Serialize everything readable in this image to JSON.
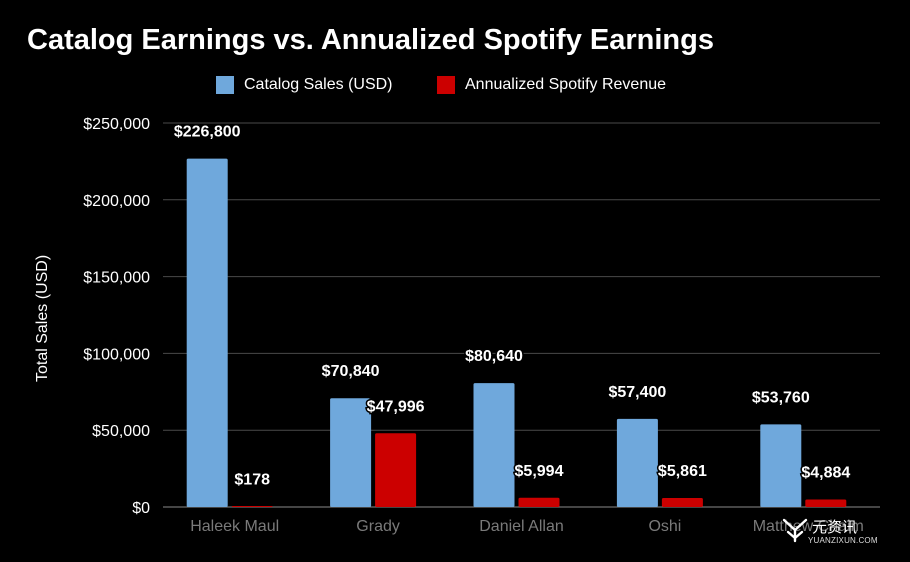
{
  "chart_data": {
    "type": "bar",
    "title": "Catalog Earnings vs. Annualized Spotify Earnings",
    "ylabel": "Total Sales (USD)",
    "xlabel": "",
    "ylim": [
      0,
      250000
    ],
    "yticks": [
      0,
      50000,
      100000,
      150000,
      200000,
      250000
    ],
    "ytick_labels": [
      "$0",
      "$50,000",
      "$100,000",
      "$150,000",
      "$200,000",
      "$250,000"
    ],
    "grid": true,
    "legend_position": "top-center",
    "categories": [
      "Haleek Maul",
      "Grady",
      "Daniel Allan",
      "Oshi",
      "Matthew Chaim"
    ],
    "series": [
      {
        "name": "Catalog Sales (USD)",
        "color": "#6fa8dc",
        "values": [
          226800,
          70840,
          80640,
          57400,
          53760
        ],
        "labels": [
          "$226,800",
          "$70,840",
          "$80,640",
          "$57,400",
          "$53,760"
        ]
      },
      {
        "name": "Annualized Spotify Revenue",
        "color": "#cc0000",
        "values": [
          178,
          47996,
          5994,
          5861,
          4884
        ],
        "labels": [
          "$178",
          "$47,996",
          "$5,994",
          "$5,861",
          "$4,884"
        ]
      }
    ]
  },
  "watermark": {
    "name": "元资讯",
    "url": "YUANZIXUN.COM",
    "logo_icon": "y-logo-icon"
  }
}
